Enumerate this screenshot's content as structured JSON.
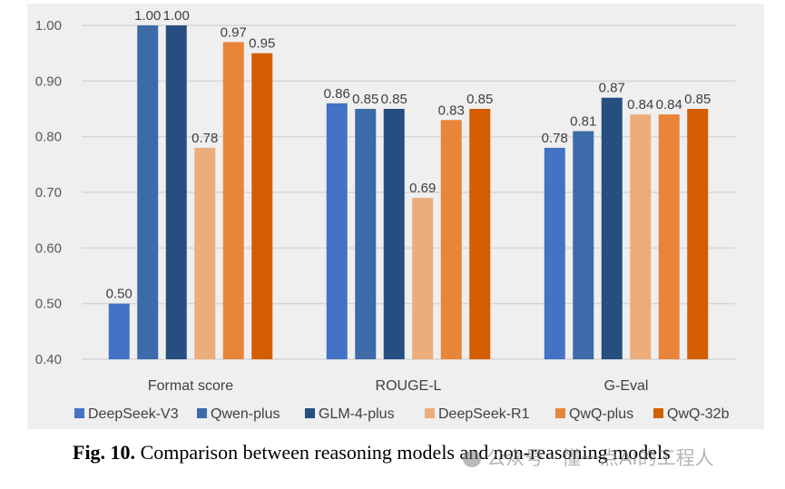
{
  "chart_data": {
    "type": "bar",
    "title": "",
    "xlabel": "",
    "ylabel": "",
    "categories": [
      "Format score",
      "ROUGE-L",
      "G-Eval"
    ],
    "series": [
      {
        "name": "DeepSeek-V3",
        "color": "#4472c4",
        "values": [
          0.5,
          0.86,
          0.78
        ]
      },
      {
        "name": "Qwen-plus",
        "color": "#3d6aa8",
        "values": [
          1.0,
          0.85,
          0.81
        ]
      },
      {
        "name": "GLM-4-plus",
        "color": "#264e80",
        "values": [
          1.0,
          0.85,
          0.87
        ]
      },
      {
        "name": "DeepSeek-R1",
        "color": "#ebad7a",
        "values": [
          0.78,
          0.69,
          0.84
        ]
      },
      {
        "name": "QwQ-plus",
        "color": "#e8853a",
        "values": [
          0.97,
          0.83,
          0.84
        ]
      },
      {
        "name": "QwQ-32b",
        "color": "#d35d00",
        "values": [
          0.95,
          0.85,
          0.85
        ]
      }
    ],
    "data_labels": [
      [
        "0.50",
        "0.86",
        "0.78"
      ],
      [
        "1.00",
        "0.85",
        "0.81"
      ],
      [
        "1.00",
        "0.85",
        "0.87"
      ],
      [
        "0.78",
        "0.69",
        "0.84"
      ],
      [
        "0.97",
        "0.83",
        "0.84"
      ],
      [
        "0.95",
        "0.85",
        "0.85"
      ]
    ],
    "ylim": [
      0.4,
      1.0
    ],
    "yticks": [
      "0.40",
      "0.50",
      "0.60",
      "0.70",
      "0.80",
      "0.90",
      "1.00"
    ],
    "ytick_values": [
      0.4,
      0.5,
      0.6,
      0.7,
      0.8,
      0.9,
      1.0
    ],
    "grid": true,
    "legend_position": "bottom"
  },
  "caption": {
    "figure_number": "Fig. 10.",
    "text": " Comparison between reasoning models and non-reasoning models"
  },
  "watermark": {
    "text": "公众号 · 懂一点AI的工程人"
  }
}
